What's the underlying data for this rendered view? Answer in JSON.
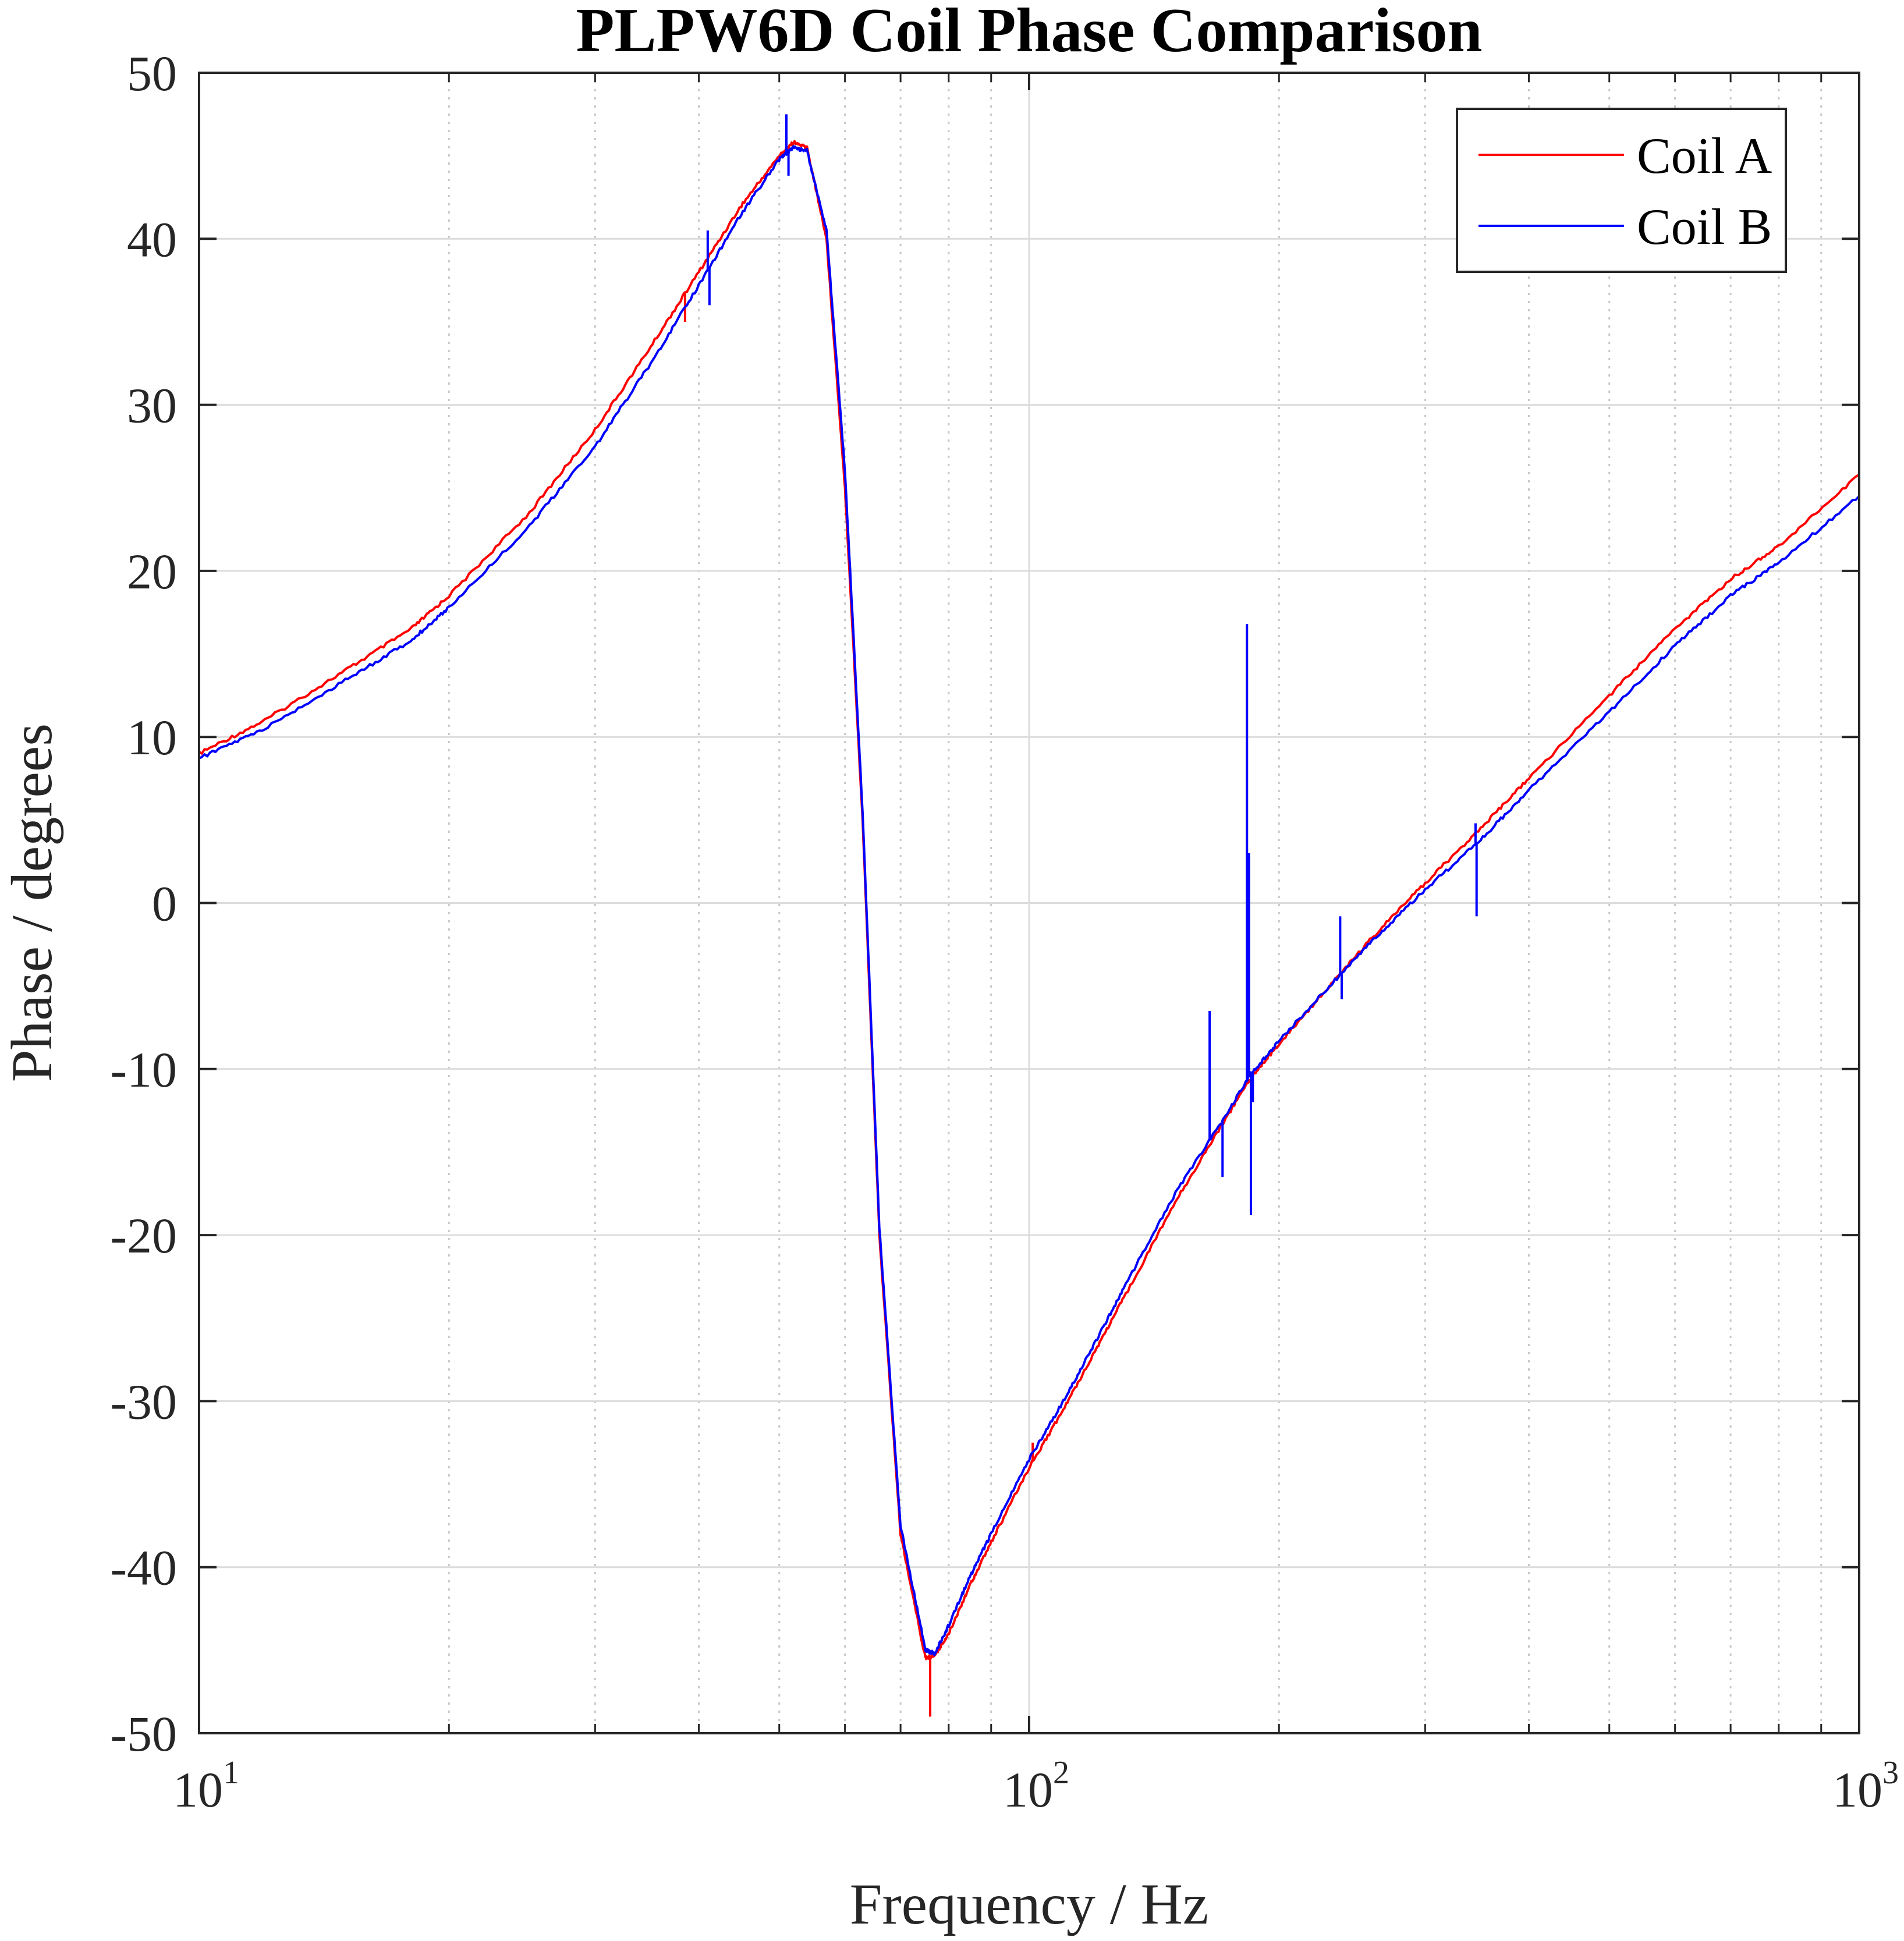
{
  "chart_data": {
    "type": "line",
    "title": "PLPW6D Coil Phase Comparison",
    "xlabel": "Frequency / Hz",
    "ylabel": "Phase / degrees",
    "xscale": "log",
    "xlim": [
      10,
      1000
    ],
    "ylim": [
      -50,
      50
    ],
    "grid": true,
    "legend_position": "top-right",
    "x_ticks": [
      {
        "base": "10",
        "exp": "1",
        "value": 10
      },
      {
        "base": "10",
        "exp": "2",
        "value": 100
      },
      {
        "base": "10",
        "exp": "3",
        "value": 1000
      }
    ],
    "y_ticks": [
      "50",
      "40",
      "30",
      "20",
      "10",
      "0",
      "-10",
      "-20",
      "-30",
      "-40",
      "-50"
    ],
    "series": [
      {
        "name": "Coil A",
        "color": "#ff0000",
        "x": [
          10,
          12,
          15,
          18,
          20,
          25,
          30,
          35,
          40,
          45,
          50,
          52,
          54,
          57,
          60,
          63,
          66,
          70,
          75,
          77,
          80,
          85,
          90,
          100,
          110,
          120,
          130,
          150,
          170,
          185,
          200,
          230,
          260,
          300,
          350,
          400,
          500,
          600,
          700,
          800,
          1000
        ],
        "y": [
          9.0,
          11.0,
          14.0,
          16.5,
          18.5,
          23.5,
          28.5,
          33.5,
          38.0,
          42.0,
          45.0,
          45.8,
          45.5,
          40.0,
          25.0,
          5.0,
          -20.0,
          -38.0,
          -45.5,
          -45.3,
          -44.0,
          -41.0,
          -38.5,
          -34.0,
          -30.5,
          -27.0,
          -23.8,
          -18.0,
          -13.5,
          -10.5,
          -8.5,
          -5.0,
          -2.0,
          1.2,
          4.5,
          7.5,
          12.5,
          16.5,
          19.5,
          21.5,
          25.8
        ],
        "spikes": [
          {
            "x": 28.5,
            "y": 27.0
          },
          {
            "x": 38.5,
            "y": 35.0
          },
          {
            "x": 76,
            "y": -49.0
          },
          {
            "x": 101,
            "y": -32.5
          }
        ]
      },
      {
        "name": "Coil B",
        "color": "#0000ff",
        "x": [
          10,
          12,
          15,
          18,
          20,
          25,
          30,
          35,
          40,
          45,
          50,
          52,
          54,
          57,
          60,
          63,
          66,
          70,
          75,
          77,
          80,
          85,
          90,
          100,
          110,
          120,
          130,
          150,
          170,
          185,
          200,
          230,
          260,
          300,
          350,
          400,
          500,
          600,
          700,
          800,
          1000
        ],
        "y": [
          8.7,
          10.5,
          13.4,
          15.8,
          17.8,
          22.7,
          27.5,
          32.5,
          37.2,
          41.5,
          44.8,
          45.5,
          45.3,
          40.5,
          26.0,
          5.5,
          -19.5,
          -37.5,
          -45.0,
          -45.2,
          -43.5,
          -40.5,
          -38.0,
          -33.5,
          -30.0,
          -26.5,
          -23.2,
          -17.5,
          -13.3,
          -10.3,
          -8.3,
          -5.0,
          -2.2,
          0.8,
          3.8,
          6.8,
          11.5,
          15.5,
          18.5,
          20.5,
          24.5
        ],
        "spikes": [
          {
            "x": 41,
            "y": 40.5
          },
          {
            "x": 41.2,
            "y": 36.0
          },
          {
            "x": 51,
            "y": 47.5
          },
          {
            "x": 51.3,
            "y": 43.8
          },
          {
            "x": 165,
            "y": -6.5
          },
          {
            "x": 166,
            "y": -14.0
          },
          {
            "x": 171,
            "y": -16.5
          },
          {
            "x": 183,
            "y": 16.8
          },
          {
            "x": 184,
            "y": 3.0
          },
          {
            "x": 185,
            "y": -18.8
          },
          {
            "x": 186,
            "y": -12.0
          },
          {
            "x": 237,
            "y": -0.8
          },
          {
            "x": 238,
            "y": -5.8
          },
          {
            "x": 295,
            "y": 0.5
          },
          {
            "x": 345,
            "y": 4.8
          },
          {
            "x": 346,
            "y": -0.8
          }
        ]
      }
    ]
  }
}
